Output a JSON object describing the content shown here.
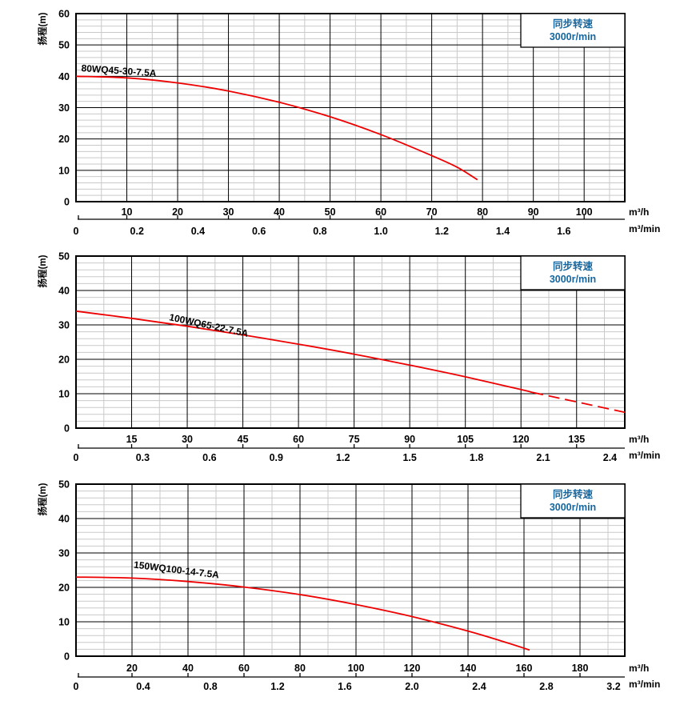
{
  "shared": {
    "ylabel": "扬程(m)",
    "unit_h": "m³/h",
    "unit_min": "m³/min",
    "speed_line1": "同步转速",
    "speed_line2": "3000r/min",
    "colors": {
      "curve": "#ee0000",
      "speed_text": "#16679f",
      "grid_major": "#000000",
      "grid_minor": "#c9c9c9",
      "border": "#000000",
      "text": "#000000"
    }
  },
  "chart_data": [
    {
      "type": "line",
      "model": "80WQ45-30-7.5A",
      "legend": "同步转速 3000r/min",
      "ylabel": "扬程(m)",
      "ylim": [
        0,
        60
      ],
      "y_major": 10,
      "y_minor": 2,
      "x_h": {
        "unit": "m³/h",
        "max": 108,
        "major": 10,
        "minor": 5,
        "ticks": [
          10,
          20,
          30,
          40,
          50,
          60,
          70,
          80,
          90,
          100
        ]
      },
      "x_min": {
        "unit": "m³/min",
        "ticks": [
          "0",
          "0.2",
          "0.4",
          "0.6",
          "0.8",
          "1.0",
          "1.2",
          "1.4",
          "1.6"
        ]
      },
      "points_q_h": [
        [
          0,
          40
        ],
        [
          10,
          39.5
        ],
        [
          20,
          37.9
        ],
        [
          30,
          35.3
        ],
        [
          40,
          31.7
        ],
        [
          50,
          27.1
        ],
        [
          60,
          21.4
        ],
        [
          70,
          14.7
        ],
        [
          75,
          11
        ],
        [
          79,
          7
        ]
      ],
      "dashed_from": null
    },
    {
      "type": "line",
      "model": "100WQ65-22-7.5A",
      "legend": "同步转速 3000r/min",
      "ylabel": "扬程(m)",
      "ylim": [
        0,
        50
      ],
      "y_major": 10,
      "y_minor": 2,
      "x_h": {
        "unit": "m³/h",
        "max": 148,
        "major": 15,
        "minor": 7.5,
        "ticks": [
          15,
          30,
          45,
          60,
          75,
          90,
          105,
          120,
          135
        ]
      },
      "x_min": {
        "unit": "m³/min",
        "ticks": [
          "0",
          "0.3",
          "0.6",
          "0.9",
          "1.2",
          "1.5",
          "1.8",
          "2.1",
          "2.4"
        ]
      },
      "points_q_h": [
        [
          0,
          34
        ],
        [
          15,
          31.9
        ],
        [
          30,
          29.6
        ],
        [
          45,
          27.1
        ],
        [
          60,
          24.4
        ],
        [
          75,
          21.5
        ],
        [
          90,
          18.3
        ],
        [
          105,
          14.9
        ],
        [
          120,
          11.2
        ],
        [
          123,
          10.4
        ],
        [
          133,
          8.1
        ],
        [
          141,
          6.2
        ],
        [
          148,
          4.6
        ]
      ],
      "dashed_from": 123
    },
    {
      "type": "line",
      "model": "150WQ100-14-7.5A",
      "legend": "同步转速 3000r/min",
      "ylabel": "扬程(m)",
      "ylim": [
        0,
        50
      ],
      "y_major": 10,
      "y_minor": 2,
      "x_h": {
        "unit": "m³/h",
        "max": 196,
        "major": 20,
        "minor": 10,
        "ticks": [
          20,
          40,
          60,
          80,
          100,
          120,
          140,
          160,
          180
        ]
      },
      "x_min": {
        "unit": "m³/min",
        "ticks": [
          "0",
          "0.4",
          "0.8",
          "1.2",
          "1.6",
          "2.0",
          "2.4",
          "2.8",
          "3.2"
        ]
      },
      "points_q_h": [
        [
          0,
          23
        ],
        [
          20,
          22.7
        ],
        [
          40,
          21.7
        ],
        [
          60,
          20.1
        ],
        [
          80,
          17.9
        ],
        [
          100,
          15
        ],
        [
          120,
          11.5
        ],
        [
          140,
          7.3
        ],
        [
          152,
          4.4
        ],
        [
          162,
          1.8
        ]
      ],
      "dashed_from": null
    }
  ]
}
